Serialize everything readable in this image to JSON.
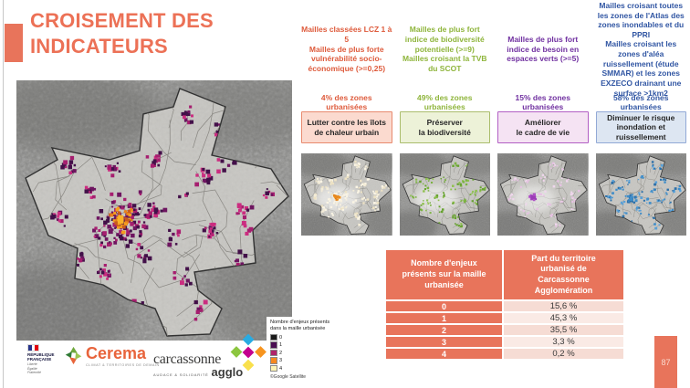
{
  "slide": {
    "title": "CROISEMENT DES INDICATEURS",
    "page_number": "87"
  },
  "columns": [
    {
      "id": "chaleur",
      "description": "Mailles classées LCZ 1 à 5\nMailles de plus forte vulnérabilité socio-économique (>=0,25)",
      "pct": "4% des zones urbanisées",
      "action": "Lutter contre les îlots\nde chaleur urbain",
      "text_color": "#DE5B3C",
      "box_bg": "#FBDACF",
      "box_border": "#E88A6E",
      "dot_color": "#EA8D1F"
    },
    {
      "id": "biodiversite",
      "description": "Mailles de plus fort indice de biodiversité potentielle (>=9)\nMailles croisant la TVB du SCOT",
      "pct": "49% des zones urbanisées",
      "action": "Préserver\nla biodiversité",
      "text_color": "#8FB53C",
      "box_bg": "#EDF2D8",
      "box_border": "#AABD6C",
      "dot_color": "#7CB342"
    },
    {
      "id": "cadre-de-vie",
      "description": "Mailles de plus fort indice de besoin en espaces verts (>=5)",
      "pct": "15% des zones urbanisées",
      "action": "Améliorer\nle cadre de vie",
      "text_color": "#7030A0",
      "box_bg": "#F5E3F3",
      "box_border": "#B25FC4",
      "dot_color": "#AE52C6"
    },
    {
      "id": "inondation",
      "description": "Mailles croisant toutes les zones de l'Atlas des zones inondables et du PPRI\nMailles croisant les zones d'aléa ruissellement (étude SMMAR) et les zones EXZECO drainant une surface >1km2",
      "pct": "58% des zones urbanisées",
      "action": "Diminuer le risque\ninondation et\nruissellement",
      "text_color": "#3156A3",
      "box_bg": "#DDE6F2",
      "box_border": "#92A9D6",
      "dot_color": "#3F8DC9"
    }
  ],
  "map_legend": {
    "title": "Nombre d'enjeux présents\ndans la maille urbanisée",
    "items": [
      {
        "label": "0",
        "color": "#1A1A1A"
      },
      {
        "label": "1",
        "color": "#4A0E52"
      },
      {
        "label": "2",
        "color": "#B0246A"
      },
      {
        "label": "3",
        "color": "#F6881F"
      },
      {
        "label": "4",
        "color": "#FDF3B3"
      }
    ],
    "source": "©Google Satellite"
  },
  "table": {
    "headers": [
      "Nombre d'enjeux\nprésents sur la maille\nurbanisée",
      "Part du territoire\nurbanisé de\nCarcassonne\nAgglomération"
    ],
    "rows": [
      {
        "enjeux": "0",
        "part": "15,6 %"
      },
      {
        "enjeux": "1",
        "part": "45,3 %"
      },
      {
        "enjeux": "2",
        "part": "35,5 %"
      },
      {
        "enjeux": "3",
        "part": "3,3 %"
      },
      {
        "enjeux": "4",
        "part": "0,2 %"
      }
    ],
    "header_bg": "#E8745B",
    "row_bg_even": "#F6DCD4",
    "row_bg_odd": "#FAEAE5"
  },
  "logos": {
    "republique_francaise": {
      "name": "RÉPUBLIQUE\nFRANÇAISE",
      "motto": "Liberté\nÉgalité\nFraternité"
    },
    "cerema": {
      "name": "Cerema",
      "tagline": "CLIMAT & TERRITOIRES DE DEMAIN"
    },
    "carcassonne_agglo": {
      "name": "carcassonne",
      "tagline": "AUDACE & SOLIDARITÉ",
      "suffix": "agglo",
      "diamond_colors": [
        "#29ABE2",
        "#8CC63F",
        "#C4008F",
        "#F7941E",
        "#F9E04C"
      ]
    }
  },
  "colors": {
    "accent": "#EC7156",
    "table_orange": "#E8745B"
  }
}
